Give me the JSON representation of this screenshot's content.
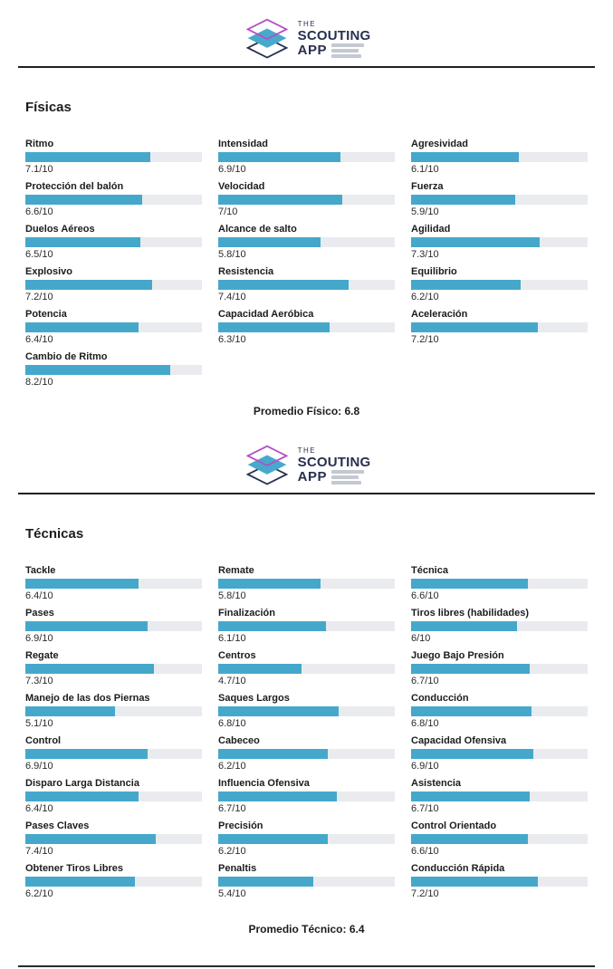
{
  "page": {
    "background": "#ffffff",
    "bar_fill_color": "#45a8cb",
    "bar_track_color": "#e9ebef",
    "rule_color": "#1f1f1f"
  },
  "logo": {
    "icon": "stacked-diamond-layers-icon",
    "word_the": "THE",
    "word_scouting": "SCOUTING",
    "word_app": "APP",
    "colors": {
      "top_diamond_outline": "#b44ec6",
      "middle_diamond_fill": "#47a9cd",
      "bottom_diamond_outline": "#27304f",
      "text": "#27304f"
    }
  },
  "chart_data": [
    {
      "type": "bar",
      "orientation": "horizontal",
      "title": "Físicas",
      "xlim": [
        0,
        10
      ],
      "columns": 3,
      "order": "row-major",
      "categories": [
        "Ritmo",
        "Intensidad",
        "Agresividad",
        "Protección del balón",
        "Velocidad",
        "Fuerza",
        "Duelos Aéreos",
        "Alcance de salto",
        "Agilidad",
        "Explosivo",
        "Resistencia",
        "Equilibrio",
        "Potencia",
        "Capacidad Aeróbica",
        "Aceleración",
        "Cambio de Ritmo"
      ],
      "values": [
        7.1,
        6.9,
        6.1,
        6.6,
        7,
        5.9,
        6.5,
        5.8,
        7.3,
        7.2,
        7.4,
        6.2,
        6.4,
        6.3,
        7.2,
        8.2
      ],
      "value_labels": [
        "7.1/10",
        "6.9/10",
        "6.1/10",
        "6.6/10",
        "7/10",
        "5.9/10",
        "6.5/10",
        "5.8/10",
        "7.3/10",
        "7.2/10",
        "7.4/10",
        "6.2/10",
        "6.4/10",
        "6.3/10",
        "7.2/10",
        "8.2/10"
      ],
      "average_label": "Promedio Físico: 6.8",
      "average_value": 6.8
    },
    {
      "type": "bar",
      "orientation": "horizontal",
      "title": "Técnicas",
      "xlim": [
        0,
        10
      ],
      "columns": 3,
      "order": "row-major",
      "categories": [
        "Tackle",
        "Remate",
        "Técnica",
        "Pases",
        "Finalización",
        "Tiros libres (habilidades)",
        "Regate",
        "Centros",
        "Juego Bajo Presión",
        "Manejo de las dos Piernas",
        "Saques Largos",
        "Conducción",
        "Control",
        "Cabeceo",
        "Capacidad Ofensiva",
        "Disparo Larga Distancia",
        "Influencia Ofensiva",
        "Asistencia",
        "Pases Claves",
        "Precisión",
        "Control Orientado",
        "Obtener Tiros Libres",
        "Penaltis",
        "Conducción Rápida"
      ],
      "values": [
        6.4,
        5.8,
        6.6,
        6.9,
        6.1,
        6,
        7.3,
        4.7,
        6.7,
        5.1,
        6.8,
        6.8,
        6.9,
        6.2,
        6.9,
        6.4,
        6.7,
        6.7,
        7.4,
        6.2,
        6.6,
        6.2,
        5.4,
        7.2
      ],
      "value_labels": [
        "6.4/10",
        "5.8/10",
        "6.6/10",
        "6.9/10",
        "6.1/10",
        "6/10",
        "7.3/10",
        "4.7/10",
        "6.7/10",
        "5.1/10",
        "6.8/10",
        "6.8/10",
        "6.9/10",
        "6.2/10",
        "6.9/10",
        "6.4/10",
        "6.7/10",
        "6.7/10",
        "7.4/10",
        "6.2/10",
        "6.6/10",
        "6.2/10",
        "5.4/10",
        "7.2/10"
      ],
      "average_label": "Promedio Técnico: 6.4",
      "average_value": 6.4
    }
  ]
}
